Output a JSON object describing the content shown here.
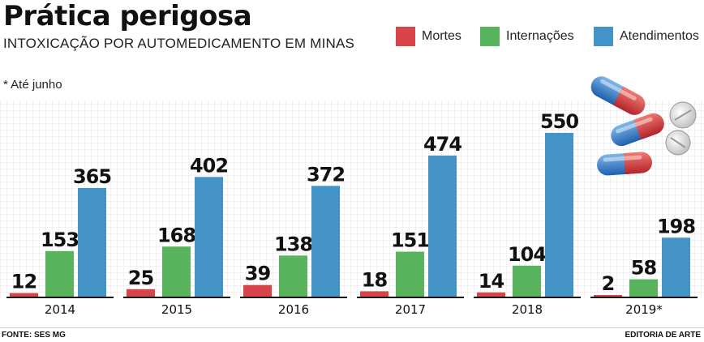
{
  "header": {
    "title": "Prática perigosa",
    "subtitle": "INTOXICAÇÃO POR AUTOMEDICAMENTO EM MINAS",
    "note": "* Até junho"
  },
  "legend": [
    {
      "label": "Mortes",
      "color": "#d9434a"
    },
    {
      "label": "Internações",
      "color": "#58b45c"
    },
    {
      "label": "Atendimentos",
      "color": "#4393c6"
    }
  ],
  "footer": {
    "source": "FONTE: SES MG",
    "credit": "EDITORIA DE ARTE"
  },
  "chart_data": {
    "type": "bar",
    "title": "Prática perigosa",
    "subtitle": "INTOXICAÇÃO POR AUTOMEDICAMENTO EM MINAS",
    "categories": [
      "2014",
      "2015",
      "2016",
      "2017",
      "2018",
      "2019*"
    ],
    "series": [
      {
        "name": "Mortes",
        "color": "#d9434a",
        "values": [
          12,
          25,
          39,
          18,
          14,
          2
        ]
      },
      {
        "name": "Internações",
        "color": "#58b45c",
        "values": [
          153,
          168,
          138,
          151,
          104,
          58
        ]
      },
      {
        "name": "Atendimentos",
        "color": "#4393c6",
        "values": [
          365,
          402,
          372,
          474,
          550,
          198
        ]
      }
    ],
    "ylim": [
      0,
      550
    ],
    "grid": true,
    "legend_position": "top-right",
    "illustration": "pills-icon"
  }
}
